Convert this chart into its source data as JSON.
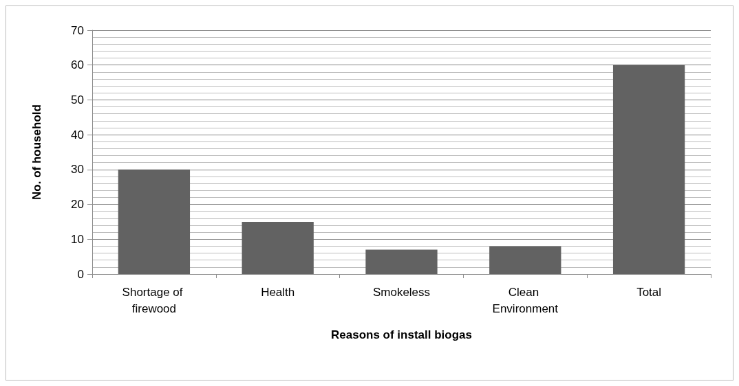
{
  "chart_data": {
    "type": "bar",
    "xlabel": "Reasons of install biogas",
    "ylabel": "No. of household",
    "categories": [
      "Shortage of firewood",
      "Health",
      "Smokeless",
      "Clean Environment",
      "Total"
    ],
    "values": [
      30,
      15,
      7,
      8,
      60
    ],
    "color": "#626262",
    "ylim": [
      0,
      70
    ],
    "yticks": [
      0,
      10,
      20,
      30,
      40,
      50,
      60,
      70
    ],
    "grid": true
  }
}
